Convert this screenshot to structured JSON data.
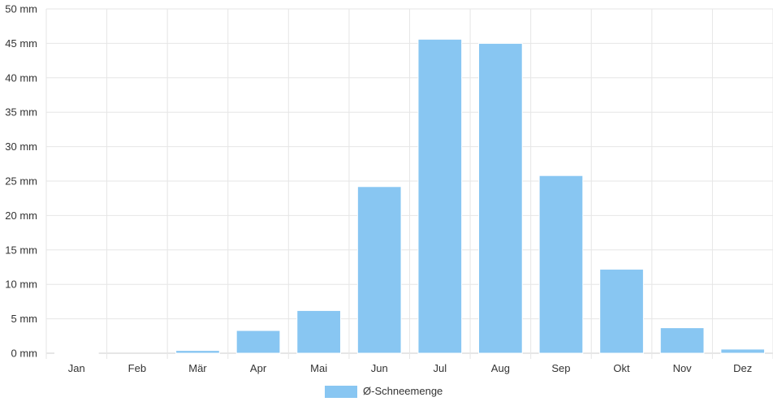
{
  "chart_data": {
    "type": "bar",
    "title": "",
    "xlabel": "",
    "ylabel": "",
    "categories": [
      "Jan",
      "Feb",
      "Mär",
      "Apr",
      "Mai",
      "Jun",
      "Jul",
      "Aug",
      "Sep",
      "Okt",
      "Nov",
      "Dez"
    ],
    "series": [
      {
        "name": "Ø-Schneemenge",
        "values": [
          0.1,
          0,
          0.4,
          3.3,
          6.2,
          24.2,
          45.6,
          45.0,
          25.8,
          12.2,
          3.7,
          0.6
        ],
        "color": "#88c6f2"
      }
    ],
    "y_unit": "mm",
    "yticks": [
      0,
      5,
      10,
      15,
      20,
      25,
      30,
      35,
      40,
      45,
      50
    ],
    "ytick_labels": [
      "0 mm",
      "5 mm",
      "10 mm",
      "15 mm",
      "20 mm",
      "25 mm",
      "30 mm",
      "35 mm",
      "40 mm",
      "45 mm",
      "50 mm"
    ],
    "ylim": [
      0,
      50
    ],
    "grid": true,
    "legend_position": "bottom-center",
    "colors": {
      "grid": "#e6e6e6",
      "axis": "#cccccc",
      "text": "#333333"
    }
  }
}
